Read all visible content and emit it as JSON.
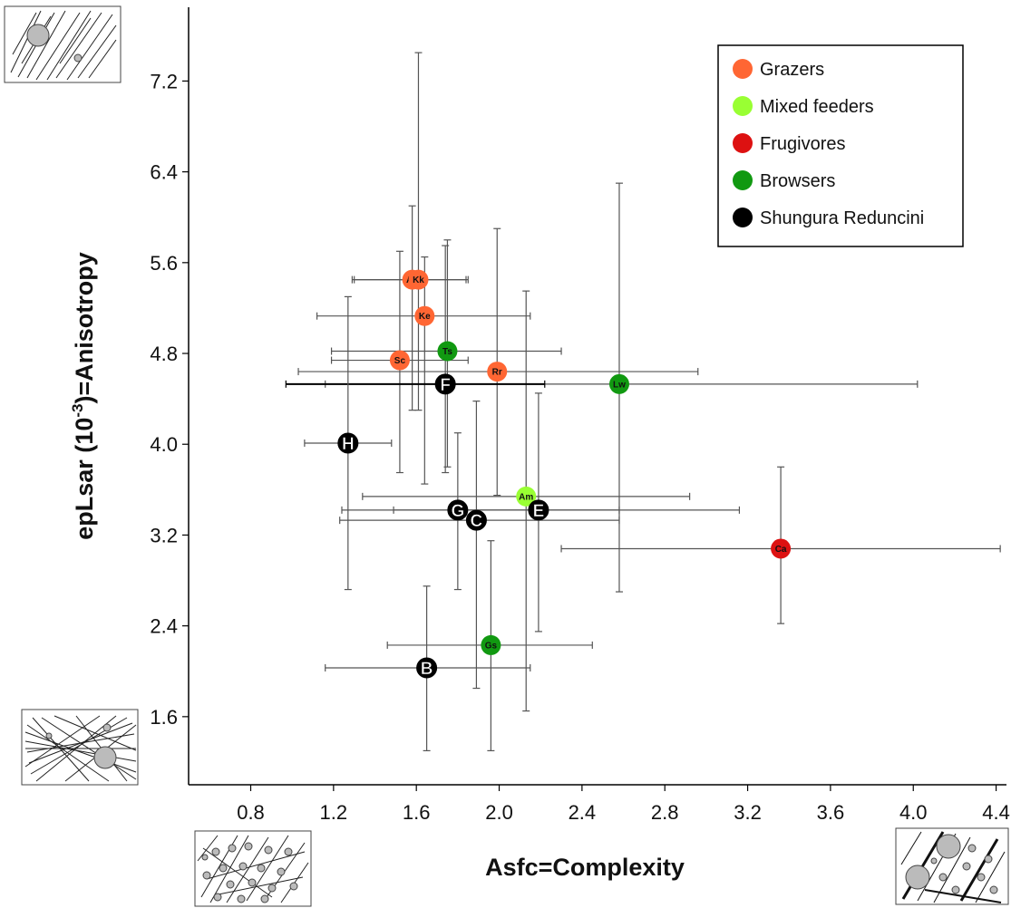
{
  "chart_data": {
    "type": "scatter",
    "xlabel": "Asfc=Complexity",
    "ylabel_prefix": "epLsar (10",
    "ylabel_sup": "-3",
    "ylabel_suffix": ")=Anisotropy",
    "xlim": [
      0.5,
      4.45
    ],
    "ylim": [
      1.0,
      7.85
    ],
    "x_ticks": [
      {
        "value": 0.8,
        "label": "0.8"
      },
      {
        "value": 1.2,
        "label": "1.2"
      },
      {
        "value": 1.6,
        "label": "1.6"
      },
      {
        "value": 2.0,
        "label": "2.0"
      },
      {
        "value": 2.4,
        "label": "2.4"
      },
      {
        "value": 2.8,
        "label": "2.8"
      },
      {
        "value": 3.2,
        "label": "3.2"
      },
      {
        "value": 3.6,
        "label": "3.6"
      },
      {
        "value": 4.0,
        "label": "4.0"
      },
      {
        "value": 4.4,
        "label": "4.4"
      }
    ],
    "y_ticks": [
      {
        "value": 1.6,
        "label": "1.6"
      },
      {
        "value": 2.4,
        "label": "2.4"
      },
      {
        "value": 3.2,
        "label": "3.2"
      },
      {
        "value": 4.0,
        "label": "4.0"
      },
      {
        "value": 4.8,
        "label": "4.8"
      },
      {
        "value": 5.6,
        "label": "5.6"
      },
      {
        "value": 6.4,
        "label": "6.4"
      },
      {
        "value": 7.2,
        "label": "7.2"
      }
    ],
    "grid": false,
    "legend_position": "top-right",
    "legend": [
      {
        "name": "Grazers",
        "color": "#ff6633"
      },
      {
        "name": "Mixed feeders",
        "color": "#99ff33"
      },
      {
        "name": "Frugivores",
        "color": "#dd1111"
      },
      {
        "name": "Browsers",
        "color": "#119911"
      },
      {
        "name": "Shungura Reduncini",
        "color": "#000000"
      }
    ],
    "series": [
      {
        "name": "Grazers",
        "color": "#ff6633",
        "points": [
          {
            "label": "Ab",
            "x": 1.58,
            "y": 5.45,
            "xerr": [
              1.29,
              1.84
            ],
            "yerr": [
              4.3,
              6.1
            ]
          },
          {
            "label": "Kk",
            "x": 1.61,
            "y": 5.45,
            "xerr": [
              1.3,
              1.85
            ],
            "yerr": [
              4.3,
              7.45
            ]
          },
          {
            "label": "Ke",
            "x": 1.64,
            "y": 5.13,
            "xerr": [
              1.12,
              2.15
            ],
            "yerr": [
              3.65,
              5.65
            ]
          },
          {
            "label": "Sc",
            "x": 1.52,
            "y": 4.74,
            "xerr": [
              1.19,
              1.85
            ],
            "yerr": [
              3.75,
              5.7
            ]
          },
          {
            "label": "Rr",
            "x": 1.99,
            "y": 4.64,
            "xerr": [
              1.03,
              2.96
            ],
            "yerr": [
              3.55,
              5.9
            ]
          }
        ]
      },
      {
        "name": "Mixed feeders",
        "color": "#99ff33",
        "points": [
          {
            "label": "Am",
            "x": 2.13,
            "y": 3.54,
            "xerr": [
              1.34,
              2.92
            ],
            "yerr": [
              1.65,
              5.35
            ]
          }
        ]
      },
      {
        "name": "Frugivores",
        "color": "#dd1111",
        "points": [
          {
            "label": "Ca",
            "x": 3.36,
            "y": 3.08,
            "xerr": [
              2.3,
              4.42
            ],
            "yerr": [
              2.42,
              3.8
            ]
          }
        ]
      },
      {
        "name": "Browsers",
        "color": "#119911",
        "points": [
          {
            "label": "Ts",
            "x": 1.75,
            "y": 4.82,
            "xerr": [
              1.19,
              2.3
            ],
            "yerr": [
              3.8,
              5.8
            ]
          },
          {
            "label": "Lw",
            "x": 2.58,
            "y": 4.53,
            "xerr": [
              1.16,
              4.02
            ],
            "yerr": [
              2.7,
              6.3
            ]
          },
          {
            "label": "Gs",
            "x": 1.96,
            "y": 2.23,
            "xerr": [
              1.46,
              2.45
            ],
            "yerr": [
              1.3,
              3.15
            ]
          }
        ]
      },
      {
        "name": "Shungura Reduncini",
        "color": "#000000",
        "points": [
          {
            "label": "F",
            "x": 1.74,
            "y": 4.53,
            "xerr": [
              0.97,
              2.22
            ],
            "yerr": [
              3.75,
              5.75
            ]
          },
          {
            "label": "H",
            "x": 1.27,
            "y": 4.01,
            "xerr": [
              1.06,
              1.48
            ],
            "yerr": [
              2.72,
              5.3
            ]
          },
          {
            "label": "G",
            "x": 1.8,
            "y": 3.42,
            "xerr": [
              1.24,
              2.58
            ],
            "yerr": [
              2.72,
              4.1
            ]
          },
          {
            "label": "C",
            "x": 1.89,
            "y": 3.33,
            "xerr": [
              1.23,
              2.58
            ],
            "yerr": [
              1.85,
              4.38
            ]
          },
          {
            "label": "E",
            "x": 2.19,
            "y": 3.42,
            "xerr": [
              1.49,
              3.16
            ],
            "yerr": [
              2.35,
              4.45
            ]
          },
          {
            "label": "B",
            "x": 1.65,
            "y": 2.03,
            "xerr": [
              1.16,
              2.15
            ],
            "yerr": [
              1.3,
              2.75
            ]
          }
        ]
      }
    ]
  }
}
